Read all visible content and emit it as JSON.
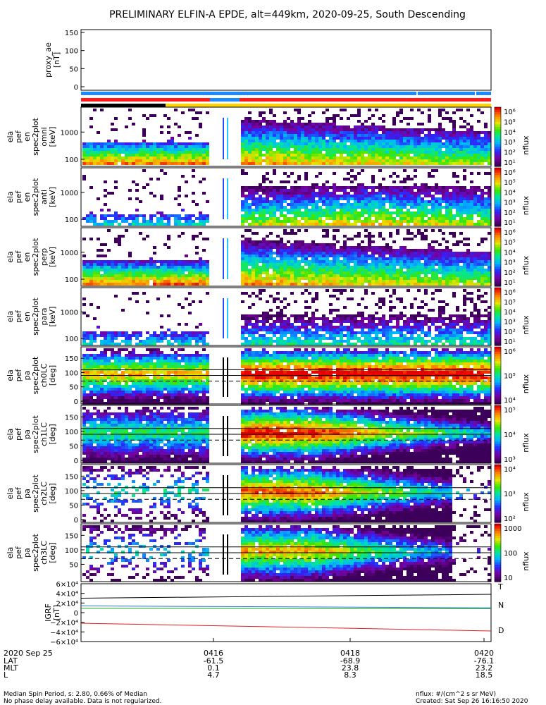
{
  "chart_data": {
    "type": "heatmap",
    "title": "PRELIMINARY ELFIN-A EPDE, alt=449km, 2020-09-25, South Descending",
    "time_axis": {
      "date_label": "2020 Sep 25",
      "ticks": [
        "0416",
        "0418",
        "0420"
      ],
      "rows": [
        {
          "label": "LAT",
          "values": [
            "-61.5",
            "-68.9",
            "-76.1"
          ]
        },
        {
          "label": "MLT",
          "values": [
            "0.1",
            "23.8",
            "23.2"
          ]
        },
        {
          "label": "L",
          "values": [
            "4.7",
            "8.3",
            "18.5"
          ]
        }
      ]
    },
    "proxy_ae": {
      "ylabel_lines": [
        "proxy_ae",
        "[nT]"
      ],
      "ticks": [
        "150",
        "100",
        "50",
        "0"
      ],
      "ylim": [
        0,
        150
      ]
    },
    "colors": {
      "bar_blue": "#1e88ff",
      "bar_red": "#ff1a1a",
      "bar_black": "#000000",
      "bar_yellow": "#ffd400",
      "igrf_t": "#000000",
      "igrf_n": "#1f7ae0",
      "igrf_d": "#e01f1f",
      "igrf_green": "#1fa81f"
    },
    "panels": [
      {
        "name": "omni",
        "ylabel_lines": [
          "ela",
          "pef",
          "en",
          "spec2plot",
          "omni",
          "[keV]"
        ],
        "yticks": [
          "1000",
          "100"
        ],
        "kind": "energy",
        "cbar_ticks": [
          "10⁶",
          "10⁵",
          "10⁴",
          "10³",
          "10²",
          "10¹"
        ],
        "cbar_label": "nflux"
      },
      {
        "name": "anti",
        "ylabel_lines": [
          "ela",
          "pef",
          "en",
          "spec2plot",
          "anti",
          "[keV]"
        ],
        "yticks": [
          "1000",
          "100"
        ],
        "kind": "energy",
        "cbar_ticks": [
          "10⁶",
          "10⁵",
          "10⁴",
          "10³",
          "10²",
          "10¹"
        ],
        "cbar_label": "nflux"
      },
      {
        "name": "perp",
        "ylabel_lines": [
          "ela",
          "pef",
          "en",
          "spec2plot",
          "perp",
          "[keV]"
        ],
        "yticks": [
          "1000",
          "100"
        ],
        "kind": "energy",
        "cbar_ticks": [
          "10⁶",
          "10⁵",
          "10⁴",
          "10³",
          "10²",
          "10¹"
        ],
        "cbar_label": "nflux"
      },
      {
        "name": "para",
        "ylabel_lines": [
          "ela",
          "pef",
          "en",
          "spec2plot",
          "para",
          "[keV]"
        ],
        "yticks": [
          "1000",
          "100"
        ],
        "kind": "energy",
        "cbar_ticks": [
          "10⁶",
          "10⁵",
          "10⁴",
          "10³",
          "10²",
          "10¹"
        ],
        "cbar_label": "nflux"
      },
      {
        "name": "ch0LC",
        "ylabel_lines": [
          "ela",
          "pef",
          "pa",
          "spec2plot",
          "ch0LC",
          "[deg]"
        ],
        "yticks": [
          "150",
          "100",
          "50",
          "0"
        ],
        "kind": "pa",
        "cbar_ticks": [
          "10⁶",
          "10⁵",
          "10⁴"
        ],
        "cbar_label": "nflux"
      },
      {
        "name": "ch1LC",
        "ylabel_lines": [
          "ela",
          "pef",
          "pa",
          "spec2plot",
          "ch1LC",
          "[deg]"
        ],
        "yticks": [
          "150",
          "100",
          "50",
          "0"
        ],
        "kind": "pa",
        "cbar_ticks": [
          "10⁵",
          "10⁴",
          "10³"
        ],
        "cbar_label": "nflux"
      },
      {
        "name": "ch2LC",
        "ylabel_lines": [
          "ela",
          "pef",
          "pa",
          "spec2plot",
          "ch2LC",
          "[deg]"
        ],
        "yticks": [
          "150",
          "100",
          "50",
          "0"
        ],
        "kind": "pa",
        "cbar_ticks": [
          "10⁴",
          "10³",
          "10²"
        ],
        "cbar_label": "nflux"
      },
      {
        "name": "ch3LC",
        "ylabel_lines": [
          "ela",
          "pef",
          "pa",
          "spec2plot",
          "ch3LC",
          "[deg]"
        ],
        "yticks": [
          "150",
          "100",
          "50"
        ],
        "kind": "pa",
        "cbar_ticks": [
          "1000",
          "100",
          "10"
        ],
        "cbar_label": "nflux"
      }
    ],
    "igrf": {
      "ylabel_lines": [
        "IGRF",
        "[nT]"
      ],
      "ticks": [
        "6×10⁴",
        "4×10⁴",
        "2×10⁴",
        "0",
        "−2×10⁴",
        "−4×10⁴",
        "−6×10⁴"
      ],
      "ylim": [
        -60000,
        60000
      ],
      "legend": [
        "T",
        "N",
        "D"
      ],
      "series": [
        {
          "key": "T",
          "start": 30000,
          "end": 38000
        },
        {
          "key": "N",
          "start": 14000,
          "end": 10000
        },
        {
          "key": "green",
          "start": 9000,
          "end": 8000
        },
        {
          "key": "D",
          "start": -22000,
          "end": -38000
        }
      ]
    },
    "footer": {
      "left_line1": "Median Spin Period, s: 2.80, 0.66% of Median",
      "left_line2": "No phase delay available. Data is not regularized.",
      "right_line1": "nflux: #/(cm^2 s sr MeV)",
      "right_line2": "Created: Sat Sep 26 16:16:50 2020"
    }
  }
}
